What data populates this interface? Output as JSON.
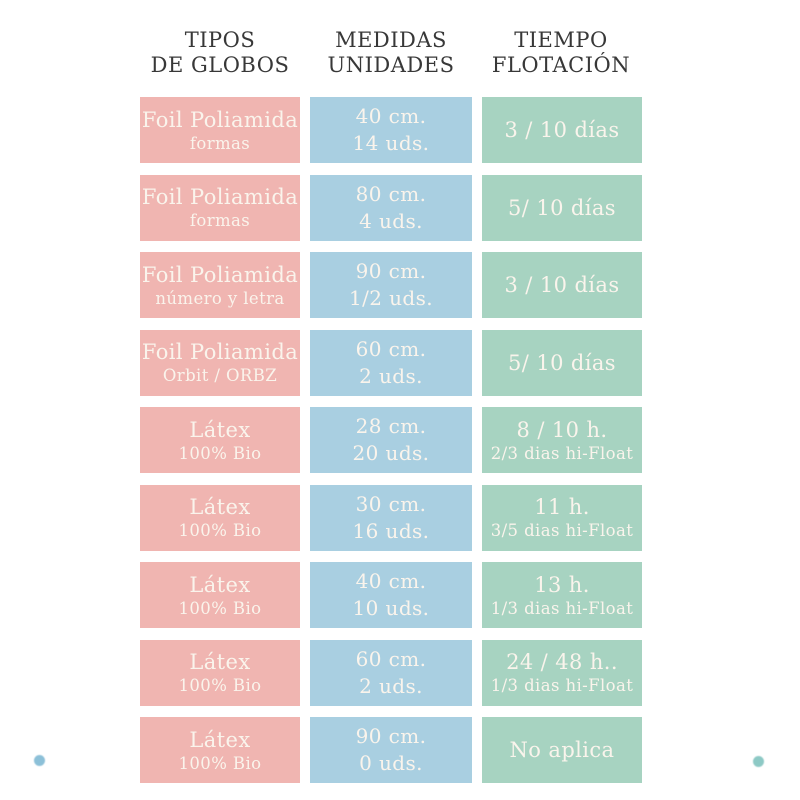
{
  "theme": {
    "pink": "#f0b5b1",
    "blue": "#a9cfe1",
    "green": "#a7d3c1",
    "cell_text": "#faf4ec",
    "header_text": "#383838",
    "dot_blue": "#8cc0d8",
    "dot_teal": "#8dc9c5"
  },
  "columns": [
    {
      "id": "tipos",
      "header_line1": "TIPOS",
      "header_line2": "DE GLOBOS"
    },
    {
      "id": "medidas",
      "header_line1": "MEDIDAS",
      "header_line2": "UNIDADES"
    },
    {
      "id": "tiempo",
      "header_line1": "TIEMPO",
      "header_line2": "FLOTACIÓN"
    }
  ],
  "rows": [
    {
      "tipo": {
        "line1": "Foil Poliamida",
        "line2": "formas"
      },
      "medida": {
        "line1": "40 cm.",
        "line2": "14 uds."
      },
      "tiempo": {
        "line1": "3 / 10 días",
        "line2": ""
      }
    },
    {
      "tipo": {
        "line1": "Foil Poliamida",
        "line2": "formas"
      },
      "medida": {
        "line1": "80 cm.",
        "line2": "4 uds."
      },
      "tiempo": {
        "line1": "5/ 10 días",
        "line2": ""
      }
    },
    {
      "tipo": {
        "line1": "Foil Poliamida",
        "line2": "número y letra"
      },
      "medida": {
        "line1": "90 cm.",
        "line2": "1/2 uds."
      },
      "tiempo": {
        "line1": "3 / 10 días",
        "line2": ""
      }
    },
    {
      "tipo": {
        "line1": "Foil Poliamida",
        "line2": "Orbit / ORBZ"
      },
      "medida": {
        "line1": "60 cm.",
        "line2": "2 uds."
      },
      "tiempo": {
        "line1": "5/ 10 días",
        "line2": ""
      }
    },
    {
      "tipo": {
        "line1": "Látex",
        "line2": "100% Bio"
      },
      "medida": {
        "line1": "28 cm.",
        "line2": "20 uds."
      },
      "tiempo": {
        "line1": "8 / 10 h.",
        "line2": "2/3 dias hi-Float"
      }
    },
    {
      "tipo": {
        "line1": "Látex",
        "line2": "100% Bio"
      },
      "medida": {
        "line1": "30 cm.",
        "line2": "16 uds."
      },
      "tiempo": {
        "line1": "11 h.",
        "line2": "3/5 dias hi-Float"
      }
    },
    {
      "tipo": {
        "line1": "Látex",
        "line2": "100% Bio"
      },
      "medida": {
        "line1": "40 cm.",
        "line2": "10 uds."
      },
      "tiempo": {
        "line1": "13 h.",
        "line2": "1/3 dias hi-Float"
      }
    },
    {
      "tipo": {
        "line1": "Látex",
        "line2": "100% Bio"
      },
      "medida": {
        "line1": "60 cm.",
        "line2": "2 uds."
      },
      "tiempo": {
        "line1": "24 / 48 h..",
        "line2": "1/3 dias hi-Float"
      }
    },
    {
      "tipo": {
        "line1": "Látex",
        "line2": "100% Bio"
      },
      "medida": {
        "line1": "90 cm.",
        "line2": "0 uds."
      },
      "tiempo": {
        "line1": "No aplica",
        "line2": ""
      }
    }
  ],
  "chart_data": {
    "type": "table",
    "title": "",
    "columns": [
      "TIPOS DE GLOBOS",
      "MEDIDAS UNIDADES",
      "TIEMPO FLOTACIÓN"
    ],
    "rows": [
      [
        "Foil Poliamida formas",
        "40 cm. 14 uds.",
        "3 / 10 días"
      ],
      [
        "Foil Poliamida formas",
        "80 cm. 4 uds.",
        "5/ 10 días"
      ],
      [
        "Foil Poliamida número y letra",
        "90 cm. 1/2 uds.",
        "3 / 10 días"
      ],
      [
        "Foil Poliamida Orbit / ORBZ",
        "60 cm. 2 uds.",
        "5/ 10 días"
      ],
      [
        "Látex 100% Bio",
        "28 cm. 20 uds.",
        "8 / 10 h. 2/3 dias hi-Float"
      ],
      [
        "Látex 100% Bio",
        "30 cm. 16 uds.",
        "11 h. 3/5 dias hi-Float"
      ],
      [
        "Látex 100% Bio",
        "40 cm. 10 uds.",
        "13 h. 1/3 dias hi-Float"
      ],
      [
        "Látex 100% Bio",
        "60 cm. 2 uds.",
        "24 / 48 h.. 1/3 dias hi-Float"
      ],
      [
        "Látex 100% Bio",
        "90 cm. 0 uds.",
        "No aplica"
      ]
    ],
    "column_colors": [
      "#f0b5b1",
      "#a9cfe1",
      "#a7d3c1"
    ]
  }
}
